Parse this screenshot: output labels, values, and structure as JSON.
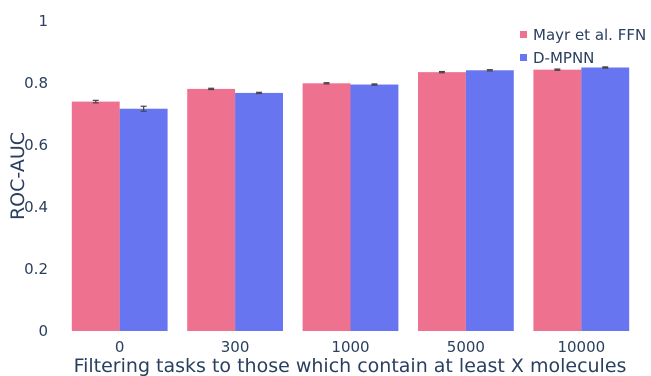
{
  "chart_data": {
    "type": "bar",
    "title": "",
    "xlabel": "Filtering tasks to those which contain at least X molecules",
    "ylabel": "ROC-AUC",
    "categories": [
      "0",
      "300",
      "1000",
      "5000",
      "10000"
    ],
    "ylim": [
      0,
      1
    ],
    "yticks": [
      0,
      0.2,
      0.4,
      0.6,
      0.8,
      1
    ],
    "ytick_labels": [
      "0",
      "0.2",
      "0.4",
      "0.6",
      "0.8",
      "1"
    ],
    "grid": false,
    "legend_position": "top-right",
    "series": [
      {
        "name": "Mayr et al. FFN",
        "color": "#ef7190",
        "values": [
          0.74,
          0.781,
          0.799,
          0.835,
          0.843
        ],
        "errors": [
          0.004,
          0.002,
          0.002,
          0.002,
          0.002
        ]
      },
      {
        "name": "D-MPNN",
        "color": "#6775f1",
        "values": [
          0.717,
          0.768,
          0.795,
          0.841,
          0.85
        ],
        "errors": [
          0.008,
          0.002,
          0.002,
          0.002,
          0.002
        ]
      }
    ]
  }
}
